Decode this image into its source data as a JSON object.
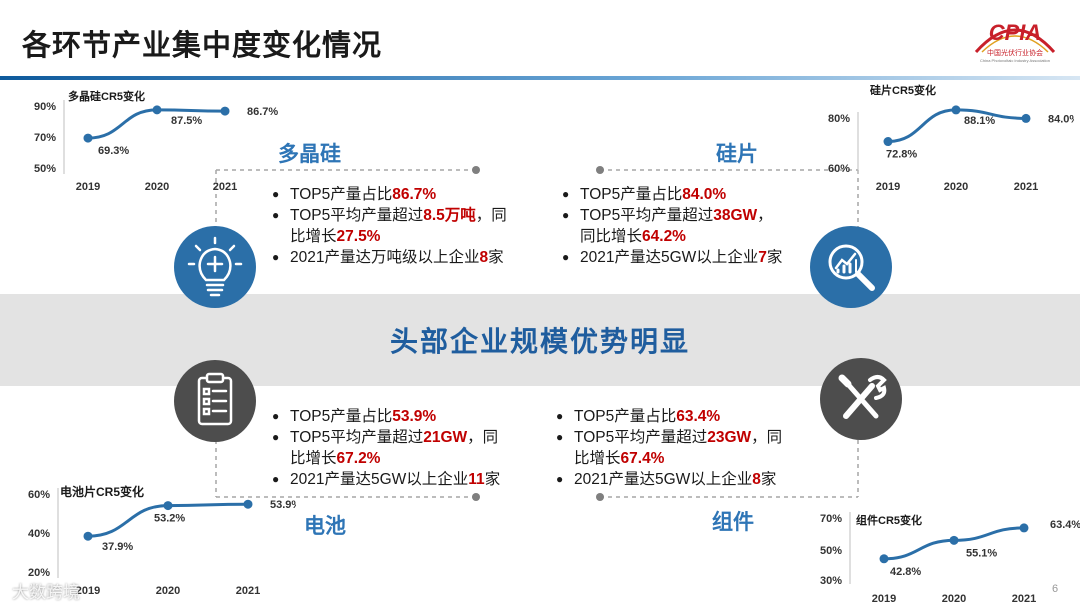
{
  "title": "各环节产业集中度变化情况",
  "logo": {
    "text": "CPIA",
    "org": "中国光伏行业协会",
    "org_en": "China Photovoltaic Industry Association"
  },
  "center_banner": "头部企业规模优势明显",
  "page_number": "6",
  "watermark": "大数跨境",
  "colors": {
    "accent_blue": "#2e75b6",
    "highlight_red": "#c00000",
    "band_grey": "#e3e3e3",
    "line_blue": "#2b6fa8"
  },
  "segments": {
    "polysilicon": {
      "title": "多晶硅",
      "icon": "lightbulb-plus-icon",
      "bullets": [
        {
          "pre": "TOP5产量占比",
          "hl": "86.7%",
          "post": ""
        },
        {
          "pre": "TOP5平均产量超过",
          "hl": "8.5万吨",
          "post": "，同",
          "line2_pre": "比增长",
          "line2_hl": "27.5%"
        },
        {
          "pre": "2021产量达万吨级以上企业",
          "hl": "8",
          "post": "家"
        }
      ]
    },
    "wafer": {
      "title": "硅片",
      "icon": "magnifier-chart-icon",
      "bullets": [
        {
          "pre": "TOP5产量占比",
          "hl": "84.0%",
          "post": ""
        },
        {
          "pre": "TOP5平均产量超过",
          "hl": "38GW",
          "post": "，",
          "line2_pre": "同比增长",
          "line2_hl": "64.2%"
        },
        {
          "pre": "2021产量达5GW以上企业",
          "hl": "7",
          "post": "家"
        }
      ]
    },
    "cell": {
      "title": "电池",
      "icon": "clipboard-checklist-icon",
      "bullets": [
        {
          "pre": "TOP5产量占比",
          "hl": "53.9%",
          "post": ""
        },
        {
          "pre": "TOP5平均产量超过",
          "hl": "21GW",
          "post": "，同",
          "line2_pre": "比增长",
          "line2_hl": "67.2%"
        },
        {
          "pre": "2021产量达5GW以上企业",
          "hl": "11",
          "post": "家"
        }
      ]
    },
    "module": {
      "title": "组件",
      "icon": "wrench-screwdriver-icon",
      "bullets": [
        {
          "pre": "TOP5产量占比",
          "hl": "63.4%",
          "post": ""
        },
        {
          "pre": "TOP5平均产量超过",
          "hl": "23GW",
          "post": "，同",
          "line2_pre": "比增长",
          "line2_hl": "67.4%"
        },
        {
          "pre": "2021产量达5GW以上企业",
          "hl": "8",
          "post": "家"
        }
      ]
    }
  },
  "chart_data": [
    {
      "type": "line",
      "title": "多晶硅CR5变化",
      "x": [
        "2019",
        "2020",
        "2021"
      ],
      "values": [
        69.3,
        87.5,
        86.7
      ],
      "labels": [
        "69.3%",
        "87.5%",
        "86.7%"
      ],
      "yticks": [
        "90%",
        "70%",
        "50%"
      ],
      "ylim": [
        50,
        90
      ]
    },
    {
      "type": "line",
      "title": "硅片CR5变化",
      "x": [
        "2019",
        "2020",
        "2021"
      ],
      "values": [
        72.8,
        88.1,
        84.0
      ],
      "labels": [
        "72.8%",
        "88.1%",
        "84.0%"
      ],
      "yticks": [
        "80%",
        "60%"
      ],
      "ylim": [
        60,
        90
      ]
    },
    {
      "type": "line",
      "title": "电池片CR5变化",
      "x": [
        "2019",
        "2020",
        "2021"
      ],
      "values": [
        37.9,
        53.2,
        53.9
      ],
      "labels": [
        "37.9%",
        "53.2%",
        "53.9%"
      ],
      "yticks": [
        "60%",
        "40%",
        "20%"
      ],
      "ylim": [
        20,
        60
      ]
    },
    {
      "type": "line",
      "title": "组件CR5变化",
      "x": [
        "2019",
        "2020",
        "2021"
      ],
      "values": [
        42.8,
        55.1,
        63.4
      ],
      "labels": [
        "42.8%",
        "55.1%",
        "63.4%"
      ],
      "yticks": [
        "70%",
        "50%",
        "30%"
      ],
      "ylim": [
        30,
        70
      ]
    }
  ]
}
